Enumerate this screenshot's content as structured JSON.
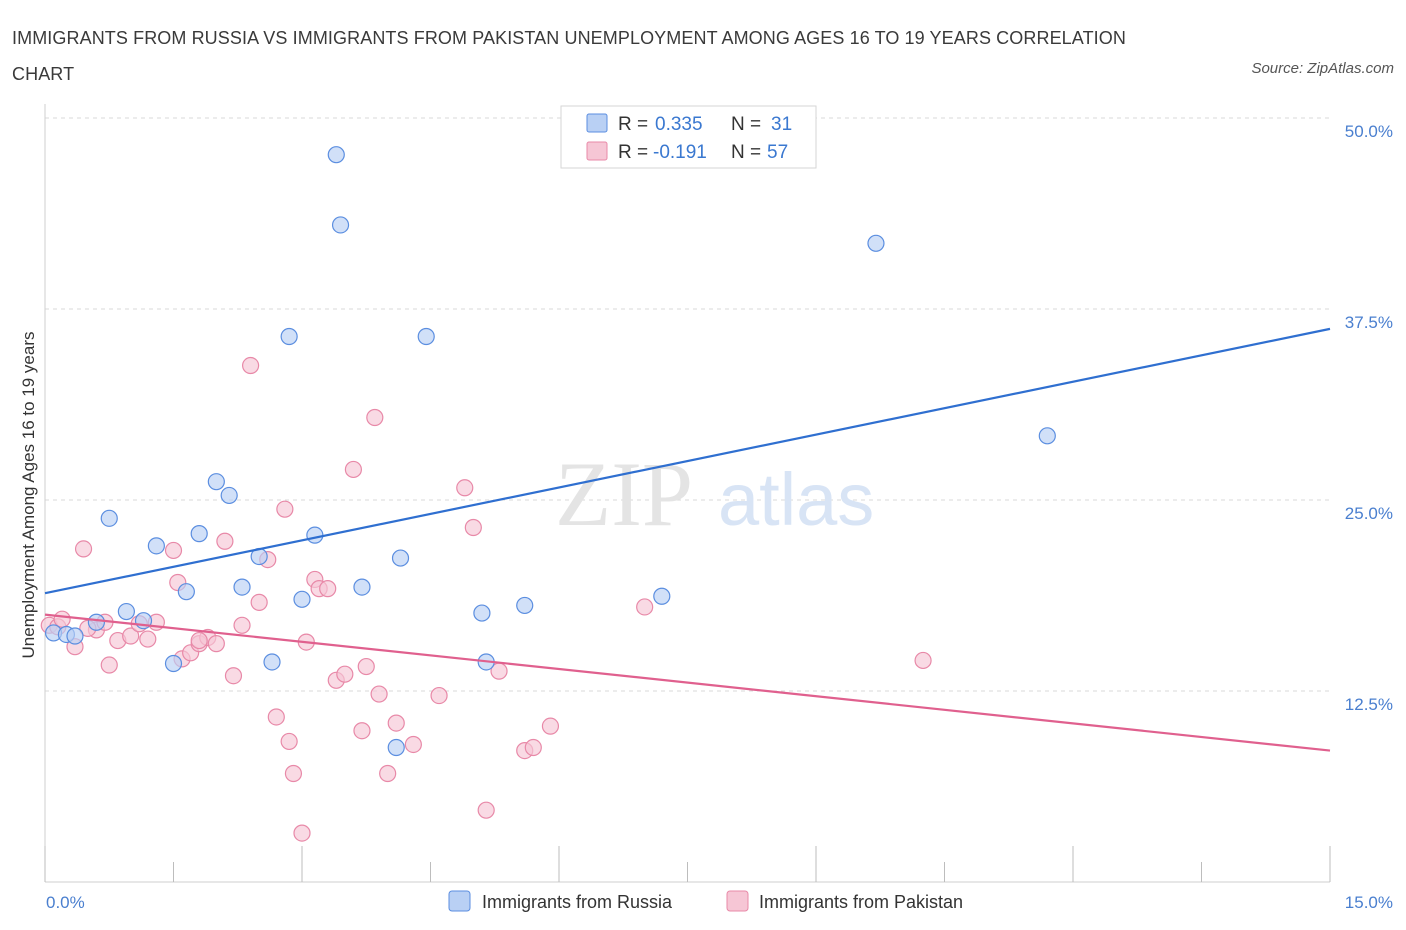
{
  "title": "IMMIGRANTS FROM RUSSIA VS IMMIGRANTS FROM PAKISTAN UNEMPLOYMENT AMONG AGES 16 TO 19 YEARS CORRELATION CHART",
  "source": "Source: ZipAtlas.com",
  "watermark": {
    "zip": "ZIP",
    "atlas": "atlas"
  },
  "colors": {
    "russia": "#5b8ee0",
    "russia_fill": "#b9d0f4",
    "russia_line": "#2f6fd0",
    "pakistan": "#e889a8",
    "pakistan_fill": "#f6c6d5",
    "pakistan_line": "#e0608e",
    "grid": "#d9d9d9",
    "tick": "#4a7fcf"
  },
  "legend": {
    "r_label": "R =",
    "n_label": "N =",
    "russia": {
      "r": "0.335",
      "n": "31"
    },
    "pakistan": {
      "r": "-0.191",
      "n": "57"
    }
  },
  "chart_data": {
    "type": "scatter",
    "title": "IMMIGRANTS FROM RUSSIA VS IMMIGRANTS FROM PAKISTAN UNEMPLOYMENT AMONG AGES 16 TO 19 YEARS CORRELATION CHART",
    "xlabel": "",
    "ylabel": "Unemployment Among Ages 16 to 19 years",
    "xlim": [
      0,
      15
    ],
    "ylim": [
      0,
      50
    ],
    "x_tick_labels": [
      "0.0%",
      "15.0%"
    ],
    "y_tick_labels": [
      "12.5%",
      "25.0%",
      "37.5%",
      "50.0%"
    ],
    "y_ticks": [
      12.5,
      25,
      37.5,
      50
    ],
    "grid": true,
    "legend_position": "top-center",
    "series": [
      {
        "name": "Immigrants from Russia",
        "points": [
          [
            0.1,
            16.3
          ],
          [
            0.25,
            16.2
          ],
          [
            0.35,
            16.1
          ],
          [
            0.6,
            17.0
          ],
          [
            0.75,
            23.8
          ],
          [
            0.95,
            17.7
          ],
          [
            1.15,
            17.1
          ],
          [
            1.3,
            22.0
          ],
          [
            1.5,
            14.3
          ],
          [
            1.65,
            19.0
          ],
          [
            1.8,
            22.8
          ],
          [
            2.0,
            26.2
          ],
          [
            2.15,
            25.3
          ],
          [
            2.3,
            19.3
          ],
          [
            2.5,
            21.3
          ],
          [
            2.65,
            14.4
          ],
          [
            2.85,
            35.7
          ],
          [
            3.0,
            18.5
          ],
          [
            3.15,
            22.7
          ],
          [
            3.4,
            47.6
          ],
          [
            3.45,
            43.0
          ],
          [
            3.7,
            19.3
          ],
          [
            4.15,
            21.2
          ],
          [
            4.1,
            8.8
          ],
          [
            4.45,
            35.7
          ],
          [
            5.1,
            17.6
          ],
          [
            5.15,
            14.4
          ],
          [
            5.6,
            18.1
          ],
          [
            7.2,
            18.7
          ],
          [
            9.7,
            41.8
          ],
          [
            11.7,
            29.2
          ]
        ],
        "trend": [
          [
            0,
            18.9
          ],
          [
            15,
            36.2
          ]
        ]
      },
      {
        "name": "Immigrants from Pakistan",
        "points": [
          [
            0.05,
            16.8
          ],
          [
            0.15,
            16.7
          ],
          [
            0.2,
            17.2
          ],
          [
            0.35,
            15.4
          ],
          [
            0.45,
            21.8
          ],
          [
            0.6,
            16.5
          ],
          [
            0.7,
            17.0
          ],
          [
            0.75,
            14.2
          ],
          [
            0.85,
            15.8
          ],
          [
            1.0,
            16.1
          ],
          [
            1.1,
            16.9
          ],
          [
            1.2,
            15.9
          ],
          [
            1.3,
            17.0
          ],
          [
            1.5,
            21.7
          ],
          [
            1.55,
            19.6
          ],
          [
            1.6,
            14.6
          ],
          [
            1.7,
            15.0
          ],
          [
            1.8,
            15.6
          ],
          [
            1.9,
            16.0
          ],
          [
            2.0,
            15.6
          ],
          [
            2.1,
            22.3
          ],
          [
            2.2,
            13.5
          ],
          [
            2.3,
            16.8
          ],
          [
            2.4,
            33.8
          ],
          [
            2.5,
            18.3
          ],
          [
            2.6,
            21.1
          ],
          [
            2.7,
            10.8
          ],
          [
            2.8,
            24.4
          ],
          [
            2.85,
            9.2
          ],
          [
            2.9,
            7.1
          ],
          [
            3.0,
            3.2
          ],
          [
            3.05,
            15.7
          ],
          [
            3.15,
            19.8
          ],
          [
            3.2,
            19.2
          ],
          [
            3.3,
            19.2
          ],
          [
            3.4,
            13.2
          ],
          [
            3.5,
            13.6
          ],
          [
            3.6,
            27.0
          ],
          [
            3.7,
            9.9
          ],
          [
            3.75,
            14.1
          ],
          [
            3.85,
            30.4
          ],
          [
            3.9,
            12.3
          ],
          [
            4.0,
            7.1
          ],
          [
            4.1,
            10.4
          ],
          [
            4.3,
            9.0
          ],
          [
            4.6,
            12.2
          ],
          [
            4.9,
            25.8
          ],
          [
            5.0,
            23.2
          ],
          [
            5.15,
            4.7
          ],
          [
            5.3,
            13.8
          ],
          [
            5.6,
            8.6
          ],
          [
            5.7,
            8.8
          ],
          [
            5.9,
            10.2
          ],
          [
            7.0,
            18.0
          ],
          [
            10.25,
            14.5
          ],
          [
            1.8,
            15.8
          ],
          [
            0.5,
            16.6
          ]
        ],
        "trend": [
          [
            0,
            17.5
          ],
          [
            15,
            8.6
          ]
        ]
      }
    ]
  }
}
